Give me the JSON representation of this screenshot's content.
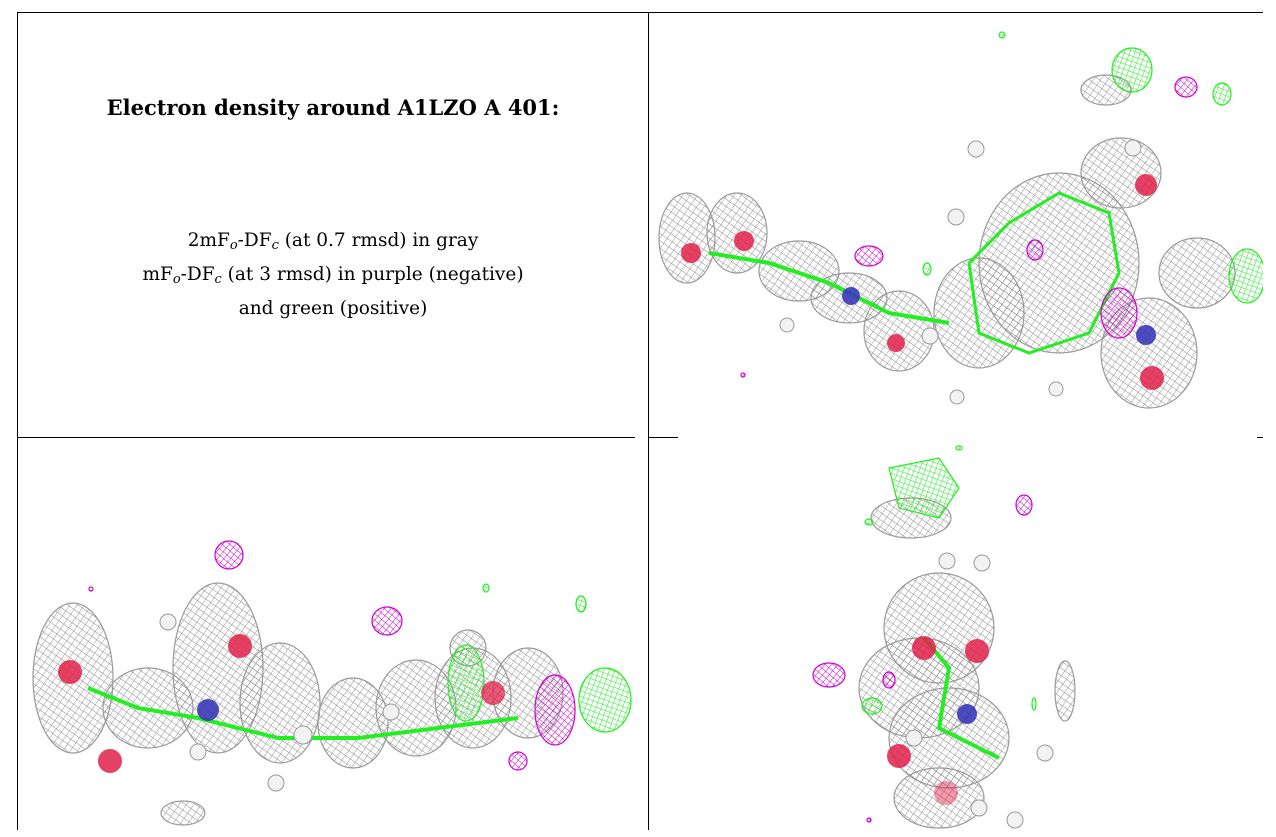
{
  "panel_text": {
    "title": "Electron density around A1LZO A 401:",
    "line1": {
      "prefix": "2mF",
      "sub1": "o",
      "mid": "-DF",
      "sub2": "c",
      "suffix": " (at 0.7 rmsd) in gray"
    },
    "line2": {
      "prefix": "mF",
      "sub1": "o",
      "mid": "-DF",
      "sub2": "c",
      "suffix": " (at 3 rmsd) in purple (negative)"
    },
    "line3": "and green (positive)"
  },
  "views": [
    {
      "name": "top-right-view"
    },
    {
      "name": "bottom-left-view"
    },
    {
      "name": "bottom-right-view"
    }
  ],
  "colors": {
    "mesh_gray": "#a0a0a0",
    "positive_green": "#22ee22",
    "negative_purple": "#cc00cc",
    "oxygen_red": "#e0204a",
    "nitrogen_blue": "#3838b8",
    "hydrogen_white": "#f2f2f2"
  }
}
